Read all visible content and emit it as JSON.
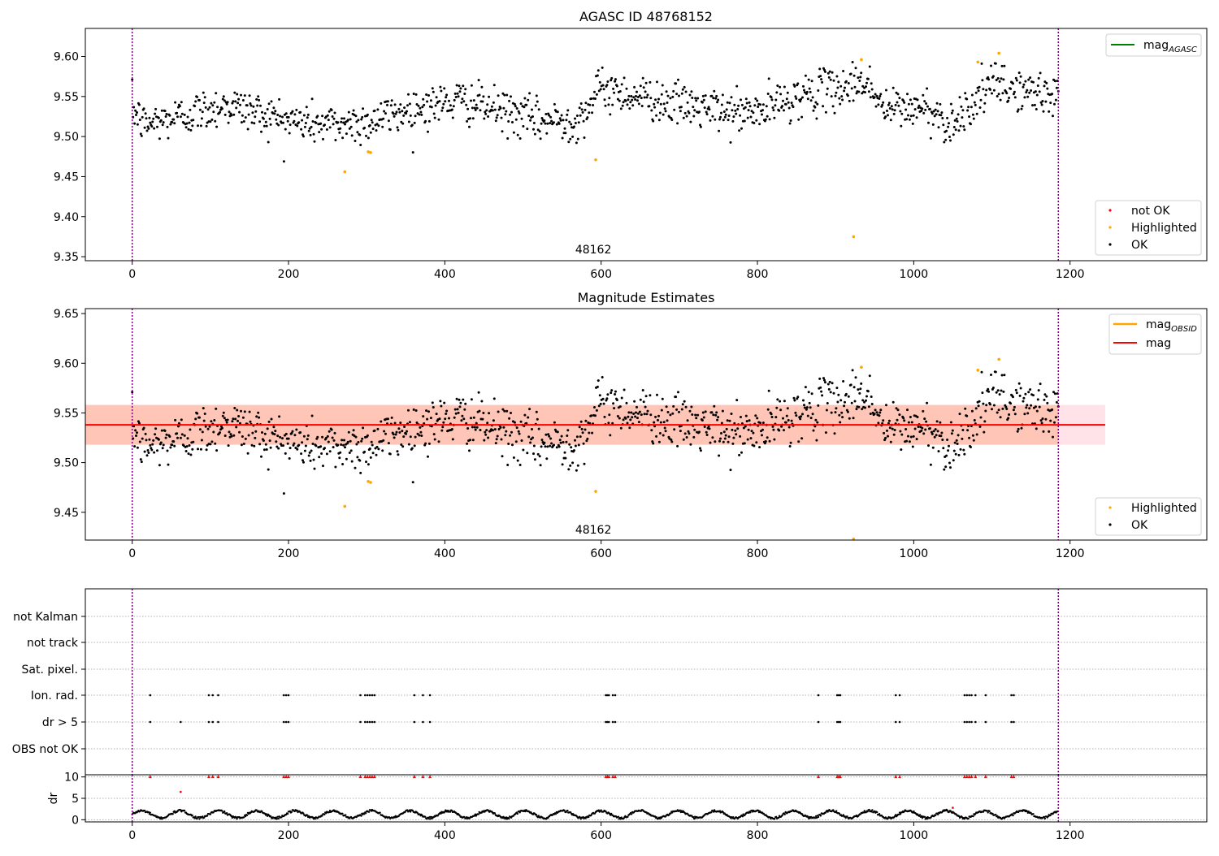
{
  "colors": {
    "ok": "#000000",
    "highlighted": "#ffa500",
    "not_ok": "#ff0000",
    "agasc_line": "#008000",
    "obsid_line": "#ffa500",
    "mag_line": "#ff0000",
    "obs_boundary": "#800080",
    "band_outer": "#ffc0cb",
    "band_inner": "#ffa07a"
  },
  "chart_data": [
    {
      "type": "scatter",
      "title": "AGASC ID 48768152",
      "xlabel": "",
      "ylabel": "",
      "xlim": [
        -60,
        1375
      ],
      "ylim": [
        9.345,
        9.635
      ],
      "xticks": [
        "0",
        "200",
        "400",
        "600",
        "800",
        "1000",
        "1200"
      ],
      "xtick_values": [
        0,
        200,
        400,
        600,
        800,
        1000,
        1200
      ],
      "yticks": [
        "9.35",
        "9.40",
        "9.45",
        "9.50",
        "9.55",
        "9.60"
      ],
      "ytick_values": [
        9.35,
        9.4,
        9.45,
        9.5,
        9.55,
        9.6
      ],
      "obsid_label": "48162",
      "obsid_label_x": 590,
      "obs_boundaries": [
        0,
        1185
      ],
      "legend_upper": [
        {
          "name": "mag",
          "sub": "AGASC",
          "kind": "line",
          "color_key": "agasc_line"
        }
      ],
      "legend_lower": [
        {
          "name": "not OK",
          "kind": "dot",
          "color_key": "not_ok"
        },
        {
          "name": "Highlighted",
          "kind": "dot",
          "color_key": "highlighted"
        },
        {
          "name": "OK",
          "kind": "dot",
          "color_key": "ok"
        }
      ],
      "series": [
        {
          "name": "OK",
          "n_points": 1185,
          "x_range": [
            0,
            1185
          ],
          "trend": [
            [
              0,
              9.535
            ],
            [
              15,
              9.515
            ],
            [
              60,
              9.525
            ],
            [
              120,
              9.54
            ],
            [
              200,
              9.52
            ],
            [
              250,
              9.515
            ],
            [
              300,
              9.518
            ],
            [
              360,
              9.535
            ],
            [
              420,
              9.545
            ],
            [
              520,
              9.52
            ],
            [
              570,
              9.52
            ],
            [
              600,
              9.56
            ],
            [
              650,
              9.55
            ],
            [
              700,
              9.54
            ],
            [
              760,
              9.53
            ],
            [
              800,
              9.53
            ],
            [
              850,
              9.55
            ],
            [
              900,
              9.56
            ],
            [
              940,
              9.57
            ],
            [
              960,
              9.535
            ],
            [
              1020,
              9.535
            ],
            [
              1045,
              9.515
            ],
            [
              1080,
              9.545
            ],
            [
              1100,
              9.565
            ],
            [
              1150,
              9.555
            ],
            [
              1185,
              9.55
            ]
          ],
          "scatter_sd": 0.013
        },
        {
          "name": "Highlighted",
          "x": [
            272,
            302,
            305,
            593,
            923,
            933,
            1082,
            1109
          ],
          "y": [
            9.456,
            9.481,
            9.48,
            9.471,
            9.375,
            9.596,
            9.593,
            9.604
          ]
        }
      ]
    },
    {
      "type": "scatter",
      "title": "Magnitude Estimates",
      "xlabel": "",
      "ylabel": "",
      "xlim": [
        -60,
        1375
      ],
      "ylim": [
        9.422,
        9.655
      ],
      "xticks": [
        "0",
        "200",
        "400",
        "600",
        "800",
        "1000",
        "1200"
      ],
      "xtick_values": [
        0,
        200,
        400,
        600,
        800,
        1000,
        1200
      ],
      "yticks": [
        "9.45",
        "9.50",
        "9.55",
        "9.60",
        "9.65"
      ],
      "ytick_values": [
        9.45,
        9.5,
        9.55,
        9.6,
        9.65
      ],
      "obsid_label": "48162",
      "obsid_label_x": 590,
      "obs_boundaries": [
        0,
        1185
      ],
      "mag": 9.538,
      "band_outer": [
        9.518,
        9.558
      ],
      "band_outer_x": [
        -60,
        1245
      ],
      "band_inner": [
        9.518,
        9.558
      ],
      "band_inner_x": [
        -60,
        1185
      ],
      "legend_upper": [
        {
          "name": "mag",
          "sub": "OBSID",
          "kind": "line",
          "color_key": "obsid_line"
        },
        {
          "name": "mag",
          "sub": "",
          "kind": "line",
          "color_key": "mag_line"
        }
      ],
      "legend_lower": [
        {
          "name": "Highlighted",
          "kind": "dot",
          "color_key": "highlighted"
        },
        {
          "name": "OK",
          "kind": "dot",
          "color_key": "ok"
        }
      ],
      "series": [
        {
          "name": "OK",
          "n_points": 1185,
          "x_range": [
            0,
            1185
          ],
          "trend": [
            [
              0,
              9.535
            ],
            [
              15,
              9.515
            ],
            [
              60,
              9.525
            ],
            [
              120,
              9.54
            ],
            [
              200,
              9.52
            ],
            [
              250,
              9.515
            ],
            [
              300,
              9.518
            ],
            [
              360,
              9.535
            ],
            [
              420,
              9.545
            ],
            [
              520,
              9.52
            ],
            [
              570,
              9.52
            ],
            [
              600,
              9.56
            ],
            [
              650,
              9.55
            ],
            [
              700,
              9.54
            ],
            [
              760,
              9.53
            ],
            [
              800,
              9.53
            ],
            [
              850,
              9.55
            ],
            [
              900,
              9.56
            ],
            [
              940,
              9.57
            ],
            [
              960,
              9.535
            ],
            [
              1020,
              9.535
            ],
            [
              1045,
              9.515
            ],
            [
              1080,
              9.545
            ],
            [
              1100,
              9.565
            ],
            [
              1150,
              9.555
            ],
            [
              1185,
              9.55
            ]
          ],
          "scatter_sd": 0.013
        },
        {
          "name": "Highlighted",
          "x": [
            272,
            302,
            305,
            593,
            923,
            933,
            1082,
            1109
          ],
          "y": [
            9.456,
            9.481,
            9.48,
            9.471,
            9.423,
            9.596,
            9.593,
            9.604
          ]
        }
      ]
    },
    {
      "type": "scatter",
      "title": "",
      "xlim": [
        -60,
        1375
      ],
      "flag_labels": [
        "not Kalman",
        "not track",
        "Sat. pixel.",
        "Ion. rad.",
        "dr > 5",
        "OBS not OK"
      ],
      "obs_boundaries": [
        0,
        1185
      ],
      "flags": {
        "ion_rad_x": [
          23,
          98,
          103,
          110,
          194,
          197,
          200,
          292,
          298,
          301,
          304,
          307,
          310,
          361,
          372,
          381,
          606,
          608,
          610,
          615,
          618,
          878,
          902,
          904,
          906,
          977,
          982,
          1065,
          1068,
          1071,
          1074,
          1079,
          1092,
          1125,
          1128
        ],
        "dr_gt_5_x": [
          23,
          62,
          98,
          103,
          110,
          194,
          197,
          200,
          292,
          298,
          301,
          304,
          307,
          310,
          361,
          372,
          381,
          606,
          608,
          610,
          615,
          618,
          878,
          902,
          904,
          906,
          977,
          982,
          1065,
          1068,
          1071,
          1074,
          1079,
          1092,
          1125,
          1128
        ]
      },
      "dr_panel": {
        "ylabel": "dr",
        "ylim": [
          -0.5,
          10.5
        ],
        "yticks": [
          "0",
          "5",
          "10"
        ],
        "ytick_values": [
          0,
          5,
          10
        ],
        "xticks": [
          "0",
          "200",
          "400",
          "600",
          "800",
          "1000",
          "1200"
        ],
        "xtick_values": [
          0,
          200,
          400,
          600,
          800,
          1000,
          1200
        ],
        "clipped_at_10_x": [
          23,
          98,
          103,
          110,
          194,
          197,
          200,
          292,
          298,
          301,
          304,
          307,
          310,
          361,
          372,
          381,
          606,
          608,
          610,
          615,
          618,
          878,
          902,
          904,
          906,
          977,
          982,
          1065,
          1068,
          1071,
          1074,
          1079,
          1092,
          1125,
          1128
        ],
        "outliers": [
          [
            62,
            6.5
          ],
          [
            1050,
            2.8
          ]
        ],
        "typical_range": [
          0.3,
          2.2
        ]
      }
    }
  ]
}
